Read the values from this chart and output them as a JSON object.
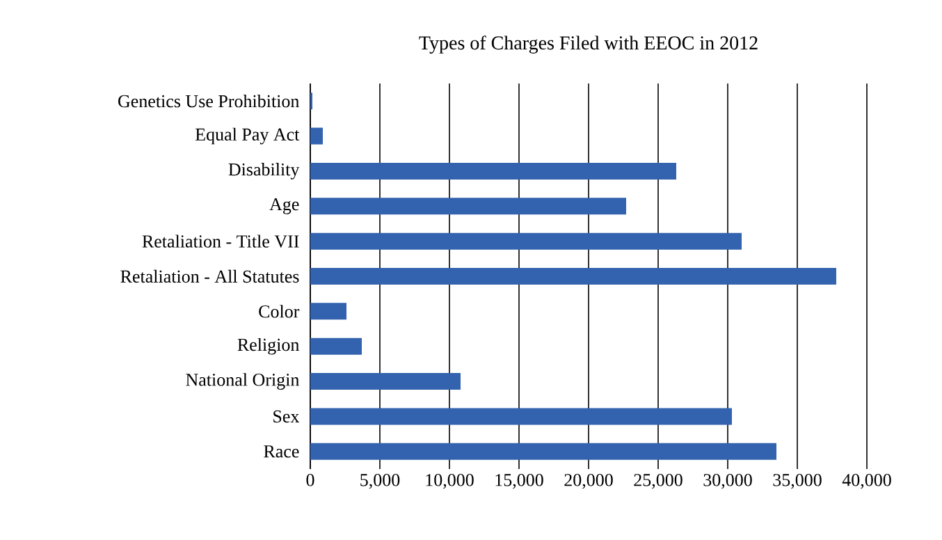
{
  "chart_data": {
    "type": "bar",
    "orientation": "horizontal",
    "title": "Types of Charges Filed with EEOC in 2012",
    "categories": [
      "Genetics Use Prohibition",
      "Equal Pay Act",
      "Disability",
      "Age",
      "Retaliation - Title VII",
      "Retaliation - All Statutes",
      "Color",
      "Religion",
      "National Origin",
      "Sex",
      "Race"
    ],
    "values": [
      150,
      900,
      26300,
      22700,
      31000,
      37800,
      2600,
      3700,
      10800,
      30300,
      33500
    ],
    "color": "#3362af",
    "xlim": [
      0,
      40000
    ],
    "xticks": [
      {
        "value": 0,
        "label": "0"
      },
      {
        "value": 5000,
        "label": "5,000"
      },
      {
        "value": 10000,
        "label": "10,000"
      },
      {
        "value": 15000,
        "label": "15,000"
      },
      {
        "value": 20000,
        "label": "20,000"
      },
      {
        "value": 25000,
        "label": "25,000"
      },
      {
        "value": 30000,
        "label": "30,000"
      },
      {
        "value": 35000,
        "label": "35,000"
      },
      {
        "value": 40000,
        "label": "40,000"
      }
    ],
    "grid": "x"
  }
}
